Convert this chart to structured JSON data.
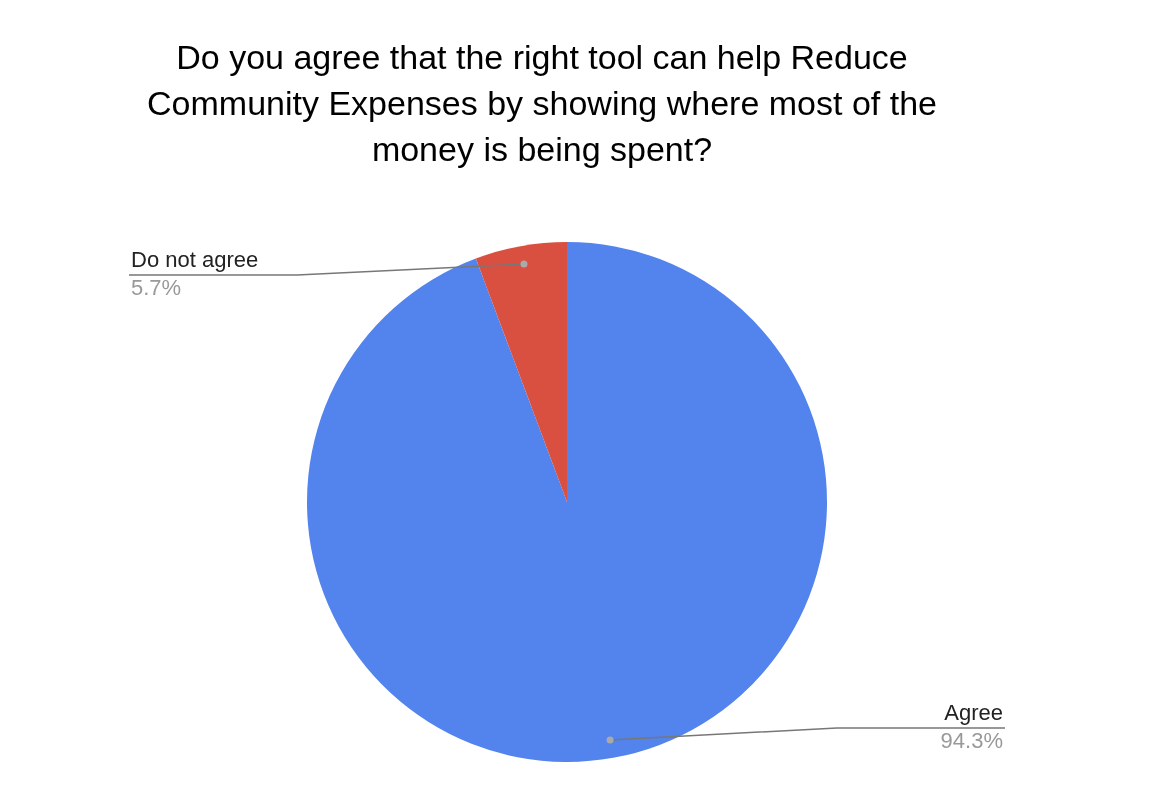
{
  "chart_data": {
    "type": "pie",
    "title": "Do you agree that the right tool can help Reduce Community Expenses by showing where most of the money is being spent?",
    "categories": [
      "Agree",
      "Do not agree"
    ],
    "values": [
      94.3,
      5.7
    ],
    "colors": [
      "#5383ec",
      "#d95040"
    ],
    "value_labels": [
      "94.3%",
      "5.7%"
    ],
    "legend": false
  }
}
